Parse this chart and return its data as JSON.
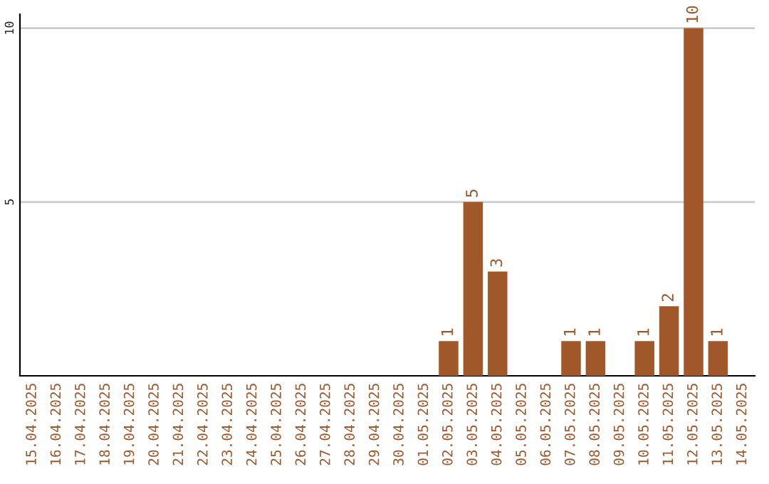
{
  "chart_data": {
    "type": "bar",
    "categories": [
      "15.04.2025",
      "16.04.2025",
      "17.04.2025",
      "18.04.2025",
      "19.04.2025",
      "20.04.2025",
      "21.04.2025",
      "22.04.2025",
      "23.04.2025",
      "24.04.2025",
      "25.04.2025",
      "26.04.2025",
      "27.04.2025",
      "28.04.2025",
      "29.04.2025",
      "30.04.2025",
      "01.05.2025",
      "02.05.2025",
      "03.05.2025",
      "04.05.2025",
      "05.05.2025",
      "06.05.2025",
      "07.05.2025",
      "08.05.2025",
      "09.05.2025",
      "10.05.2025",
      "11.05.2025",
      "12.05.2025",
      "13.05.2025",
      "14.05.2025"
    ],
    "values": [
      0,
      0,
      0,
      0,
      0,
      0,
      0,
      0,
      0,
      0,
      0,
      0,
      0,
      0,
      0,
      0,
      0,
      1,
      5,
      3,
      0,
      0,
      1,
      1,
      0,
      1,
      2,
      10,
      1,
      0
    ],
    "value_labels": [
      null,
      null,
      null,
      null,
      null,
      null,
      null,
      null,
      null,
      null,
      null,
      null,
      null,
      null,
      null,
      null,
      null,
      "1",
      "5",
      "3",
      null,
      null,
      "1",
      "1",
      null,
      "1",
      "2",
      "10",
      "1",
      null
    ],
    "color": "#a0572a",
    "ylim": [
      0,
      10.4
    ],
    "yticks": [
      5,
      10
    ],
    "grid": "y",
    "legend": false
  }
}
